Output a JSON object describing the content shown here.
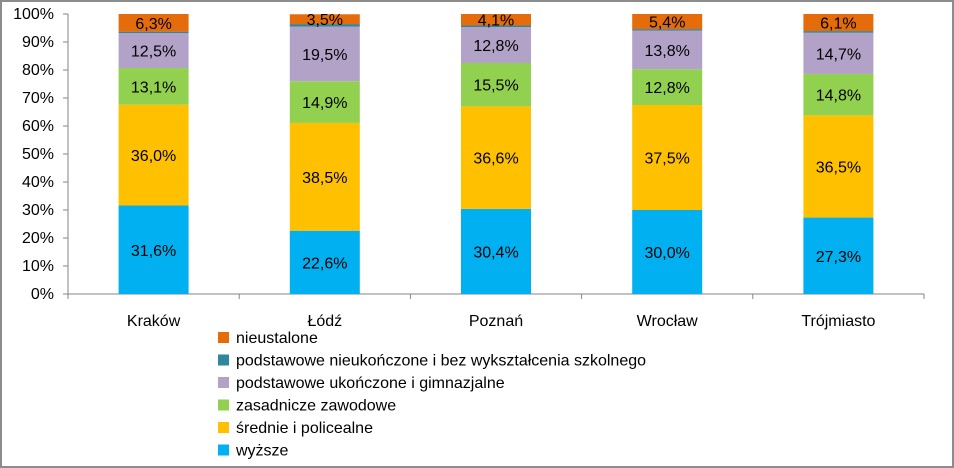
{
  "chart_data": {
    "type": "bar",
    "stacked": true,
    "categories": [
      "Kraków",
      "Łódź",
      "Poznań",
      "Wrocław",
      "Trójmiasto"
    ],
    "series": [
      {
        "name": "wyższe",
        "color": "#00b0f0",
        "values": [
          31.6,
          22.6,
          30.4,
          30.0,
          27.3
        ],
        "labels": [
          "31,6%",
          "22,6%",
          "30,4%",
          "30,0%",
          "27,3%"
        ]
      },
      {
        "name": "średnie i policealne",
        "color": "#ffc000",
        "values": [
          36.0,
          38.5,
          36.6,
          37.5,
          36.5
        ],
        "labels": [
          "36,0%",
          "38,5%",
          "36,6%",
          "37,5%",
          "36,5%"
        ]
      },
      {
        "name": "zasadnicze zawodowe",
        "color": "#92d050",
        "values": [
          13.1,
          14.9,
          15.5,
          12.8,
          14.8
        ],
        "labels": [
          "13,1%",
          "14,9%",
          "15,5%",
          "12,8%",
          "14,8%"
        ]
      },
      {
        "name": "podstawowe ukończone i gimnazjalne",
        "color": "#b3a2c7",
        "values": [
          12.5,
          19.5,
          12.8,
          13.8,
          14.7
        ],
        "labels": [
          "12,5%",
          "19,5%",
          "12,8%",
          "13,8%",
          "14,7%"
        ]
      },
      {
        "name": "podstawowe nieukończone i bez wykształcenia szkolnego",
        "color": "#31859c",
        "values": [
          0.5,
          0.9,
          0.6,
          0.5,
          0.6
        ],
        "labels": [
          "",
          "",
          "",
          "",
          ""
        ]
      },
      {
        "name": "nieustalone",
        "color": "#e46c0a",
        "values": [
          6.3,
          3.5,
          4.1,
          5.4,
          6.1
        ],
        "labels": [
          "6,3%",
          "3,5%",
          "4,1%",
          "5,4%",
          "6,1%"
        ]
      }
    ],
    "ylim": [
      0,
      100
    ],
    "yticks": [
      "0%",
      "10%",
      "20%",
      "30%",
      "40%",
      "50%",
      "60%",
      "70%",
      "80%",
      "90%",
      "100%"
    ],
    "grid": false,
    "legend": {
      "position": "bottom",
      "order": [
        "nieustalone",
        "podstawowe nieukończone i bez wykształcenia szkolnego",
        "podstawowe ukończone i gimnazjalne",
        "zasadnicze zawodowe",
        "średnie i policealne",
        "wyższe"
      ]
    }
  }
}
